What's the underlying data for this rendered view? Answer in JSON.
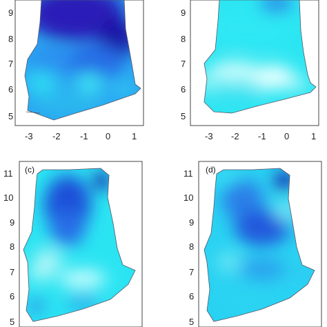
{
  "panels": [
    {
      "id": "a",
      "label": "",
      "y_ticks": [
        "5",
        "6",
        "7",
        "8",
        "9"
      ],
      "x_ticks": [
        "-3",
        "-2",
        "-1",
        "0",
        "1"
      ],
      "palette": "dark-blue"
    },
    {
      "id": "b",
      "label": "",
      "y_ticks": [
        "5",
        "6",
        "7",
        "8",
        "9"
      ],
      "x_ticks": [
        "-3",
        "-2",
        "-1",
        "0",
        "1"
      ],
      "palette": "cyan-white"
    },
    {
      "id": "c",
      "label": "(c)",
      "y_ticks": [
        "5",
        "6",
        "7",
        "8",
        "9",
        "10",
        "11"
      ],
      "x_ticks": [],
      "palette": "mixed"
    },
    {
      "id": "d",
      "label": "(d)",
      "y_ticks": [
        "5",
        "6",
        "7",
        "8",
        "9",
        "10",
        "11"
      ],
      "x_ticks": [],
      "palette": "mixed-cyan"
    }
  ],
  "colors": {
    "deep_blue": "#1a1ab0",
    "blue": "#1f5ee0",
    "mid_blue": "#2a8cf0",
    "cyan": "#27e6f0",
    "light_cyan": "#9ff7f7",
    "white": "#f2ffff"
  }
}
